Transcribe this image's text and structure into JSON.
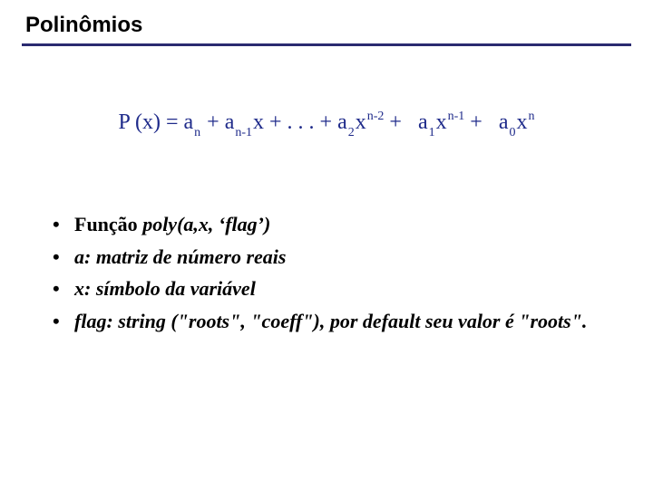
{
  "title": "Polinômios",
  "rule_color": "#2a2a70",
  "formula_color": "#1e2a8a",
  "formula": {
    "lhs": "P (x) = ",
    "a": "a",
    "x": "x",
    "dots": "+ . . . + ",
    "plus": "+",
    "sub_n": "n",
    "sub_n1": "n-1",
    "sub_2": "2",
    "sub_1": "1",
    "sub_0": "0",
    "sup_n2": "n-2",
    "sup_n1": "n-1",
    "sup_n": "n"
  },
  "bullets": {
    "b1_label": "Função ",
    "b1_rest": "poly(a,x, ‘flag’)",
    "b2": "a: matriz de número reais",
    "b3": "x: símbolo da variável",
    "b4": "flag: string (\"roots\", \"coeff\"), por default seu valor é \"roots\"."
  }
}
